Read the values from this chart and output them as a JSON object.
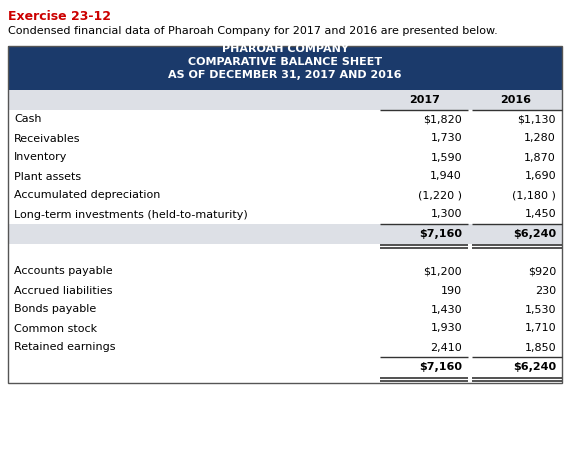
{
  "exercise_label": "Exercise 23-12",
  "subtitle": "Condensed financial data of Pharoah Company for 2017 and 2016 are presented below.",
  "header_bg": "#1b3a6b",
  "header_text_color": "#ffffff",
  "header_lines": [
    "PHAROAH COMPANY",
    "COMPARATIVE BALANCE SHEET",
    "AS OF DECEMBER 31, 2017 AND 2016"
  ],
  "col_headers": [
    "2017",
    "2016"
  ],
  "col_header_bg": "#dde0e6",
  "total_row_bg": "#dde0e6",
  "asset_rows": [
    {
      "label": "Cash",
      "v2017": "$1,820",
      "v2016": "$1,130"
    },
    {
      "label": "Receivables",
      "v2017": "1,730",
      "v2016": "1,280"
    },
    {
      "label": "Inventory",
      "v2017": "1,590",
      "v2016": "1,870"
    },
    {
      "label": "Plant assets",
      "v2017": "1,940",
      "v2016": "1,690"
    },
    {
      "label": "Accumulated depreciation",
      "v2017": "(1,220 )",
      "v2016": "(1,180 )"
    },
    {
      "label": "Long-term investments (held-to-maturity)",
      "v2017": "1,300",
      "v2016": "1,450"
    }
  ],
  "asset_total": {
    "v2017": "$7,160",
    "v2016": "$6,240"
  },
  "liability_rows": [
    {
      "label": "Accounts payable",
      "v2017": "$1,200",
      "v2016": "$920"
    },
    {
      "label": "Accrued liabilities",
      "v2017": "190",
      "v2016": "230"
    },
    {
      "label": "Bonds payable",
      "v2017": "1,430",
      "v2016": "1,530"
    },
    {
      "label": "Common stock",
      "v2017": "1,930",
      "v2016": "1,710"
    },
    {
      "label": "Retained earnings",
      "v2017": "2,410",
      "v2016": "1,850"
    }
  ],
  "liability_total": {
    "v2017": "$7,160",
    "v2016": "$6,240"
  },
  "exercise_color": "#cc0000",
  "font_size_header": 8.0,
  "font_size_body": 8.0,
  "font_size_exercise": 9.0,
  "font_size_subtitle": 8.0
}
